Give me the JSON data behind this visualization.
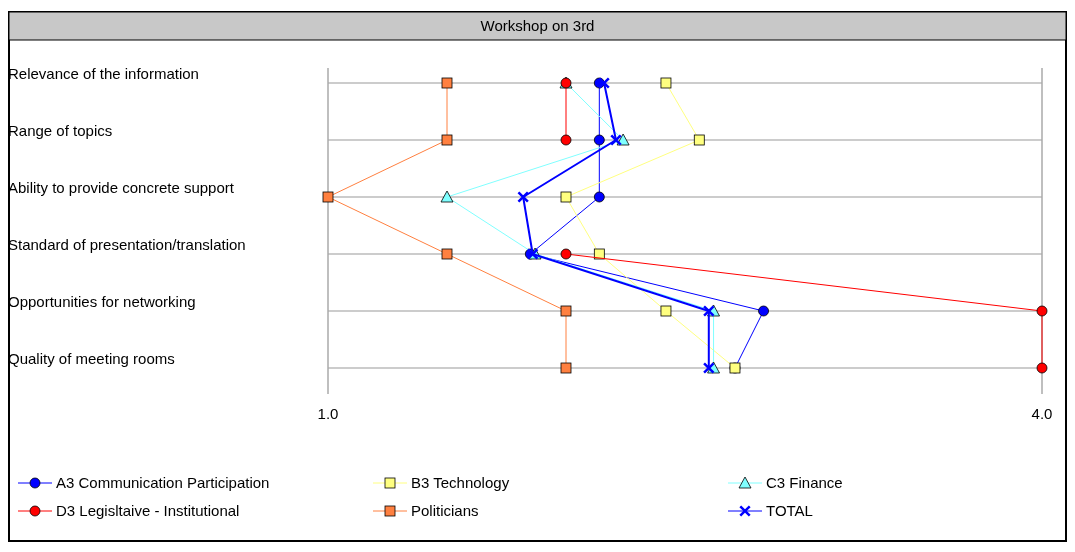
{
  "chart_data": {
    "type": "line",
    "orientation": "horizontal",
    "title": "Workshop on 3rd",
    "categories": [
      "Relevance of the information",
      "Range of topics",
      "Ability to provide concrete support",
      "Standard of presentation/translation",
      "Opportunities for networking",
      "Quality of meeting rooms"
    ],
    "series": [
      {
        "name": "A3 Communication Participation",
        "color": "#0000ff",
        "marker": "circle",
        "values": [
          2.14,
          2.14,
          2.14,
          1.85,
          2.83,
          2.71
        ]
      },
      {
        "name": "B3 Technology",
        "color": "#ffff80",
        "marker": "square",
        "values": [
          2.42,
          2.56,
          2.0,
          2.14,
          2.42,
          2.71
        ]
      },
      {
        "name": "C3 Finance",
        "color": "#80ffff",
        "marker": "triangle",
        "values": [
          2.0,
          2.24,
          1.5,
          1.87,
          2.62,
          2.62
        ]
      },
      {
        "name": "D3 Legisltaive - Institutional",
        "color": "#ff0000",
        "marker": "circle",
        "values": [
          2.0,
          2.0,
          null,
          2.0,
          4.0,
          4.0
        ]
      },
      {
        "name": "Politicians",
        "color": "#ff8040",
        "marker": "square",
        "values": [
          1.5,
          1.5,
          1.0,
          1.5,
          2.0,
          2.0
        ]
      },
      {
        "name": "TOTAL",
        "color": "#0000ff",
        "marker": "cross",
        "values": [
          2.16,
          2.21,
          1.82,
          1.86,
          2.6,
          2.6
        ]
      }
    ],
    "xlim": [
      1,
      4
    ],
    "xticks": [
      {
        "value": 1,
        "label": "1.0"
      },
      {
        "value": 4,
        "label": "4.0"
      }
    ],
    "grid": true,
    "legend": "bottom"
  }
}
